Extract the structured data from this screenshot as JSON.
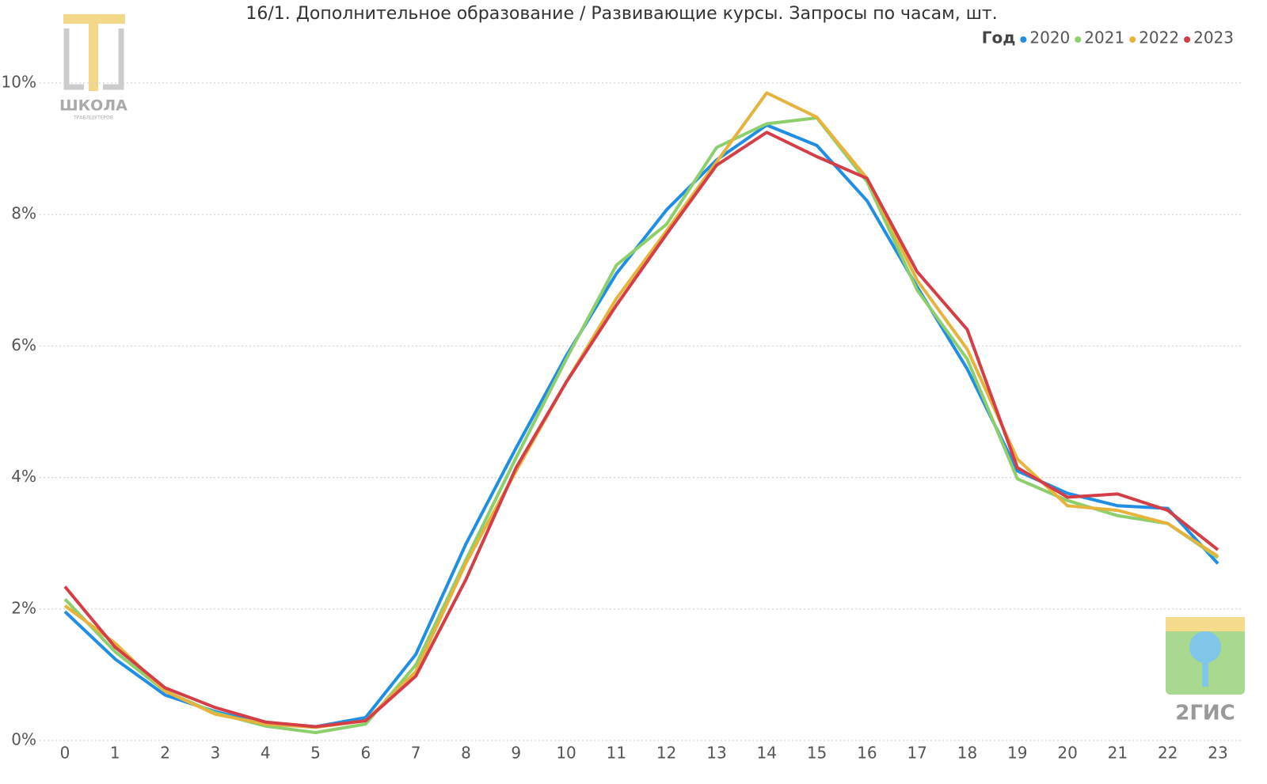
{
  "chart_data": {
    "type": "line",
    "title": "16/1. Дополнительное образование / Развивающие курсы. Запросы по часам, шт.",
    "legend_title": "Год",
    "legend_position": "top-right",
    "categories": [
      "0",
      "1",
      "2",
      "3",
      "4",
      "5",
      "6",
      "7",
      "8",
      "9",
      "10",
      "11",
      "12",
      "13",
      "14",
      "15",
      "16",
      "17",
      "18",
      "19",
      "20",
      "21",
      "22",
      "23"
    ],
    "ylim": [
      0,
      10.3
    ],
    "yticks": [
      {
        "value": 0,
        "label": "0%"
      },
      {
        "value": 2,
        "label": "2%"
      },
      {
        "value": 4,
        "label": "4%"
      },
      {
        "value": 6,
        "label": "6%"
      },
      {
        "value": 8,
        "label": "8%"
      },
      {
        "value": 10,
        "label": "10%"
      }
    ],
    "grid": true,
    "series": [
      {
        "name": "2020",
        "color": "#1f8ee4",
        "values": [
          1.96,
          1.24,
          0.69,
          0.44,
          0.25,
          0.21,
          0.35,
          1.31,
          2.99,
          4.45,
          5.85,
          7.1,
          8.07,
          8.83,
          9.36,
          9.05,
          8.21,
          6.9,
          5.65,
          4.1,
          3.76,
          3.57,
          3.53,
          2.69
        ]
      },
      {
        "name": "2021",
        "color": "#8ccf6c",
        "values": [
          2.15,
          1.35,
          0.75,
          0.42,
          0.22,
          0.12,
          0.25,
          1.15,
          2.75,
          4.3,
          5.8,
          7.23,
          7.85,
          9.02,
          9.38,
          9.47,
          8.5,
          6.85,
          5.8,
          3.98,
          3.65,
          3.42,
          3.3,
          2.78
        ]
      },
      {
        "name": "2022",
        "color": "#e6b33c",
        "values": [
          2.05,
          1.48,
          0.75,
          0.4,
          0.25,
          0.2,
          0.3,
          1.05,
          2.7,
          4.1,
          5.45,
          6.72,
          7.75,
          8.8,
          9.85,
          9.48,
          8.55,
          7.0,
          5.95,
          4.28,
          3.57,
          3.5,
          3.3,
          2.8
        ]
      },
      {
        "name": "2023",
        "color": "#d43f47",
        "values": [
          2.34,
          1.42,
          0.8,
          0.5,
          0.28,
          0.21,
          0.3,
          0.98,
          2.45,
          4.15,
          5.45,
          6.62,
          7.7,
          8.75,
          9.25,
          8.88,
          8.55,
          7.13,
          6.25,
          4.15,
          3.7,
          3.75,
          3.5,
          2.9
        ]
      }
    ]
  },
  "logos": {
    "school": "ШКОЛА",
    "school_sub": "ТРАБЛШУТЕРОВ",
    "gis": "2ГИС"
  }
}
